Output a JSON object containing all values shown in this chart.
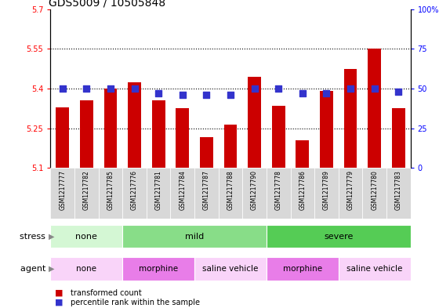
{
  "title": "GDS5009 / 10505848",
  "samples": [
    "GSM1217777",
    "GSM1217782",
    "GSM1217785",
    "GSM1217776",
    "GSM1217781",
    "GSM1217784",
    "GSM1217787",
    "GSM1217788",
    "GSM1217790",
    "GSM1217778",
    "GSM1217786",
    "GSM1217789",
    "GSM1217779",
    "GSM1217780",
    "GSM1217783"
  ],
  "bar_values": [
    5.33,
    5.355,
    5.4,
    5.425,
    5.355,
    5.325,
    5.215,
    5.265,
    5.445,
    5.335,
    5.205,
    5.39,
    5.475,
    5.55,
    5.325
  ],
  "dot_values": [
    50,
    50,
    50,
    50,
    47,
    46,
    46,
    46,
    50,
    50,
    47,
    47,
    50,
    50,
    48
  ],
  "bar_bottom": 5.1,
  "ylim_left": [
    5.1,
    5.7
  ],
  "ylim_right": [
    0,
    100
  ],
  "yticks_left": [
    5.1,
    5.25,
    5.4,
    5.55,
    5.7
  ],
  "yticks_right": [
    0,
    25,
    50,
    75,
    100
  ],
  "ytick_labels_left": [
    "5.1",
    "5.25",
    "5.4",
    "5.55",
    "5.7"
  ],
  "ytick_labels_right": [
    "0",
    "25",
    "50",
    "75",
    "100%"
  ],
  "hlines": [
    5.25,
    5.4,
    5.55
  ],
  "bar_color": "#cc0000",
  "dot_color": "#3333cc",
  "stress_groups": [
    {
      "label": "none",
      "start": 0,
      "end": 3,
      "color": "#d4f7d4"
    },
    {
      "label": "mild",
      "start": 3,
      "end": 9,
      "color": "#88dd88"
    },
    {
      "label": "severe",
      "start": 9,
      "end": 15,
      "color": "#55cc55"
    }
  ],
  "agent_groups": [
    {
      "label": "none",
      "start": 0,
      "end": 3,
      "color": "#f9d4f9"
    },
    {
      "label": "morphine",
      "start": 3,
      "end": 6,
      "color": "#e87de8"
    },
    {
      "label": "saline vehicle",
      "start": 6,
      "end": 9,
      "color": "#f9d4f9"
    },
    {
      "label": "morphine",
      "start": 9,
      "end": 12,
      "color": "#e87de8"
    },
    {
      "label": "saline vehicle",
      "start": 12,
      "end": 15,
      "color": "#f9d4f9"
    }
  ],
  "title_fontsize": 10,
  "bar_width": 0.55,
  "dot_size": 30,
  "n": 15
}
